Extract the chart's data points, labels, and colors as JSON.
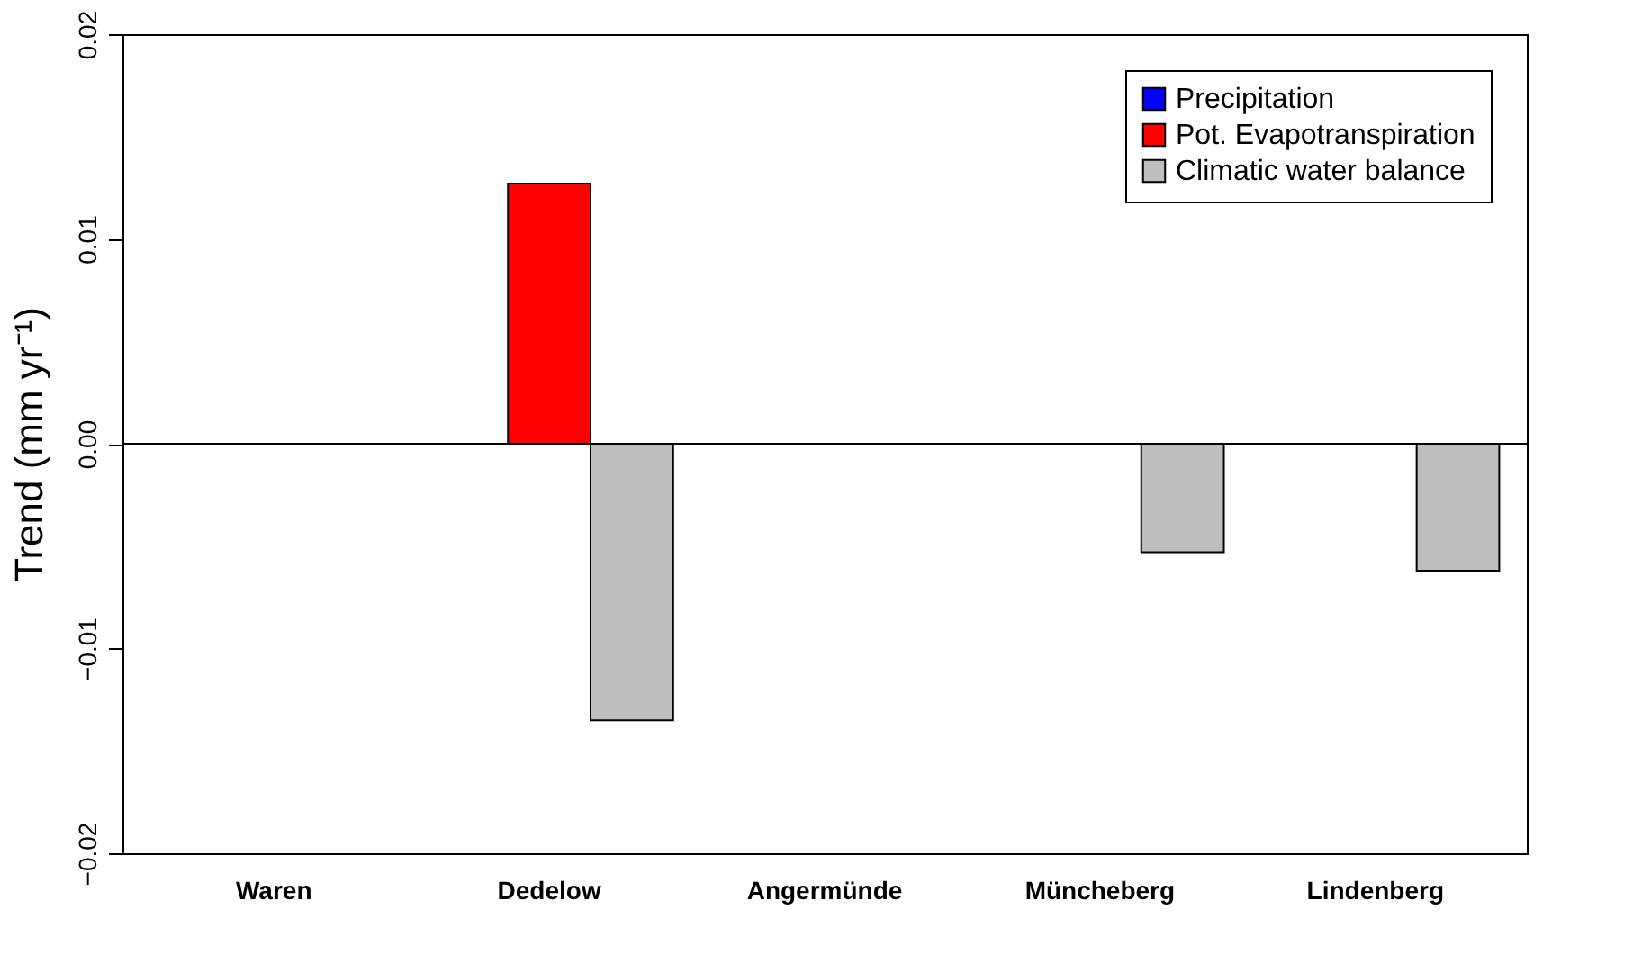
{
  "chart_data": {
    "type": "bar",
    "ylabel": "Trend (mm yr⁻¹)",
    "categories": [
      "Waren",
      "Dedelow",
      "Angermünde",
      "Müncheberg",
      "Lindenberg"
    ],
    "series": [
      {
        "name": "Precipitation",
        "color": "#0000ff",
        "values": [
          0,
          0,
          0,
          0,
          0
        ]
      },
      {
        "name": "Pot. Evapotranspiration",
        "color": "#ff0000",
        "values": [
          0,
          0.0127,
          0,
          0,
          0
        ]
      },
      {
        "name": "Climatic water balance",
        "color": "#bebebe",
        "values": [
          0,
          -0.0135,
          0,
          -0.0053,
          -0.0062
        ]
      }
    ],
    "ylim": [
      -0.02,
      0.02
    ],
    "yticks": [
      {
        "value": -0.02,
        "label": "−0.02"
      },
      {
        "value": -0.01,
        "label": "−0.01"
      },
      {
        "value": 0,
        "label": "0.00"
      },
      0.01,
      0.02
    ],
    "ref_lines": [
      {
        "axis": "y",
        "value": 0,
        "color": "#000000"
      }
    ],
    "grid": false,
    "legend": "top right"
  }
}
